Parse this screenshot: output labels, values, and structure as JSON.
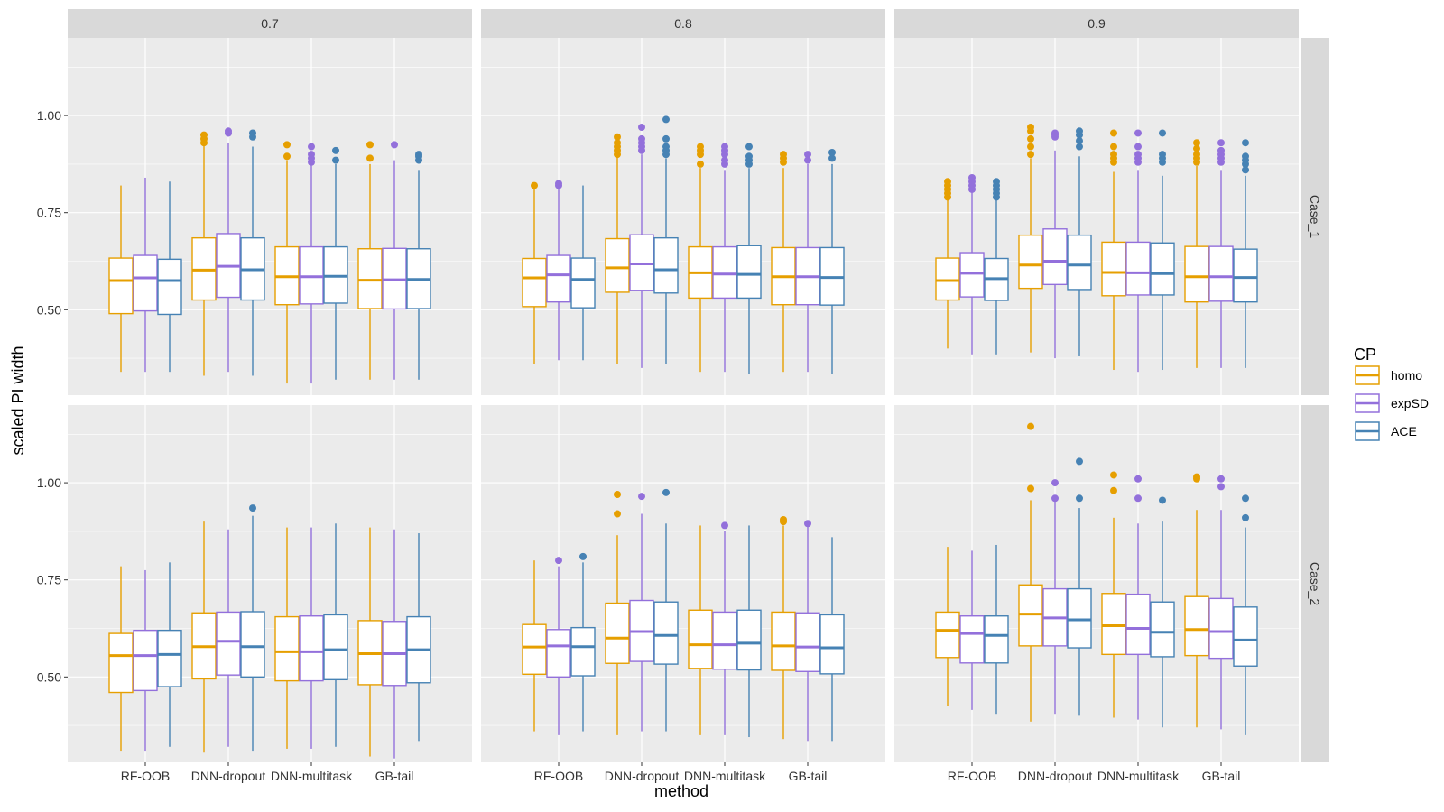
{
  "chart_data": {
    "type": "boxplot",
    "xlabel": "method",
    "ylabel": "scaled PI width",
    "ylim": [
      0.28,
      1.2
    ],
    "yticks": [
      0.5,
      0.75,
      1.0
    ],
    "ytick_labels": [
      "0.50",
      "0.75",
      "1.00"
    ],
    "categories": [
      "RF-OOB",
      "DNN-dropout",
      "DNN-multitask",
      "GB-tail"
    ],
    "facet_cols": [
      "0.7",
      "0.8",
      "0.9"
    ],
    "facet_rows": [
      "Case_1",
      "Case_2"
    ],
    "legend": {
      "title": "CP",
      "placement": "right",
      "entries": [
        {
          "label": "homo",
          "color": "#E69F00"
        },
        {
          "label": "expSD",
          "color": "#9370DB"
        },
        {
          "label": "ACE",
          "color": "#4682B4"
        }
      ]
    },
    "series_colors": [
      "#E69F00",
      "#9370DB",
      "#4682B4"
    ],
    "panels": [
      {
        "row": "Case_1",
        "col": "0.7",
        "boxes": [
          [
            {
              "whislo": 0.34,
              "q1": 0.49,
              "med": 0.575,
              "q3": 0.633,
              "whishi": 0.82,
              "out": []
            },
            {
              "whislo": 0.34,
              "q1": 0.497,
              "med": 0.582,
              "q3": 0.64,
              "whishi": 0.84,
              "out": []
            },
            {
              "whislo": 0.34,
              "q1": 0.488,
              "med": 0.575,
              "q3": 0.63,
              "whishi": 0.83,
              "out": []
            }
          ],
          [
            {
              "whislo": 0.33,
              "q1": 0.525,
              "med": 0.602,
              "q3": 0.685,
              "whishi": 0.925,
              "out": [
                0.93,
                0.94,
                0.95
              ]
            },
            {
              "whislo": 0.34,
              "q1": 0.532,
              "med": 0.612,
              "q3": 0.696,
              "whishi": 0.93,
              "out": [
                0.955,
                0.96
              ]
            },
            {
              "whislo": 0.33,
              "q1": 0.525,
              "med": 0.603,
              "q3": 0.685,
              "whishi": 0.92,
              "out": [
                0.945,
                0.955
              ]
            }
          ],
          [
            {
              "whislo": 0.31,
              "q1": 0.513,
              "med": 0.585,
              "q3": 0.662,
              "whishi": 0.885,
              "out": [
                0.895,
                0.925
              ]
            },
            {
              "whislo": 0.31,
              "q1": 0.515,
              "med": 0.585,
              "q3": 0.662,
              "whishi": 0.875,
              "out": [
                0.88,
                0.89,
                0.9,
                0.92
              ]
            },
            {
              "whislo": 0.32,
              "q1": 0.517,
              "med": 0.586,
              "q3": 0.662,
              "whishi": 0.875,
              "out": [
                0.885,
                0.91
              ]
            }
          ],
          [
            {
              "whislo": 0.32,
              "q1": 0.503,
              "med": 0.576,
              "q3": 0.657,
              "whishi": 0.875,
              "out": [
                0.89,
                0.925
              ]
            },
            {
              "whislo": 0.32,
              "q1": 0.502,
              "med": 0.577,
              "q3": 0.658,
              "whishi": 0.885,
              "out": [
                0.925
              ]
            },
            {
              "whislo": 0.32,
              "q1": 0.503,
              "med": 0.578,
              "q3": 0.657,
              "whishi": 0.86,
              "out": [
                0.885,
                0.895,
                0.9
              ]
            }
          ]
        ]
      },
      {
        "row": "Case_1",
        "col": "0.8",
        "boxes": [
          [
            {
              "whislo": 0.36,
              "q1": 0.508,
              "med": 0.582,
              "q3": 0.632,
              "whishi": 0.81,
              "out": [
                0.82
              ]
            },
            {
              "whislo": 0.37,
              "q1": 0.52,
              "med": 0.59,
              "q3": 0.64,
              "whishi": 0.81,
              "out": [
                0.82,
                0.825
              ]
            },
            {
              "whislo": 0.37,
              "q1": 0.505,
              "med": 0.578,
              "q3": 0.633,
              "whishi": 0.82,
              "out": []
            }
          ],
          [
            {
              "whislo": 0.36,
              "q1": 0.545,
              "med": 0.608,
              "q3": 0.683,
              "whishi": 0.895,
              "out": [
                0.9,
                0.91,
                0.92,
                0.93,
                0.945
              ]
            },
            {
              "whislo": 0.35,
              "q1": 0.55,
              "med": 0.618,
              "q3": 0.693,
              "whishi": 0.9,
              "out": [
                0.91,
                0.92,
                0.93,
                0.94,
                0.97
              ]
            },
            {
              "whislo": 0.36,
              "q1": 0.543,
              "med": 0.603,
              "q3": 0.685,
              "whishi": 0.89,
              "out": [
                0.9,
                0.91,
                0.92,
                0.94,
                0.99
              ]
            }
          ],
          [
            {
              "whislo": 0.34,
              "q1": 0.53,
              "med": 0.595,
              "q3": 0.662,
              "whishi": 0.865,
              "out": [
                0.875,
                0.9,
                0.91,
                0.92
              ]
            },
            {
              "whislo": 0.34,
              "q1": 0.53,
              "med": 0.592,
              "q3": 0.662,
              "whishi": 0.86,
              "out": [
                0.875,
                0.885,
                0.9,
                0.91,
                0.92
              ]
            },
            {
              "whislo": 0.335,
              "q1": 0.53,
              "med": 0.591,
              "q3": 0.665,
              "whishi": 0.865,
              "out": [
                0.875,
                0.885,
                0.895,
                0.92
              ]
            }
          ],
          [
            {
              "whislo": 0.34,
              "q1": 0.513,
              "med": 0.585,
              "q3": 0.66,
              "whishi": 0.865,
              "out": [
                0.88,
                0.89,
                0.9
              ]
            },
            {
              "whislo": 0.34,
              "q1": 0.513,
              "med": 0.585,
              "q3": 0.66,
              "whishi": 0.875,
              "out": [
                0.885,
                0.9
              ]
            },
            {
              "whislo": 0.335,
              "q1": 0.512,
              "med": 0.583,
              "q3": 0.66,
              "whishi": 0.875,
              "out": [
                0.89,
                0.905
              ]
            }
          ]
        ]
      },
      {
        "row": "Case_1",
        "col": "0.9",
        "boxes": [
          [
            {
              "whislo": 0.4,
              "q1": 0.525,
              "med": 0.575,
              "q3": 0.633,
              "whishi": 0.785,
              "out": [
                0.79,
                0.8,
                0.81,
                0.82,
                0.83
              ]
            },
            {
              "whislo": 0.385,
              "q1": 0.533,
              "med": 0.594,
              "q3": 0.647,
              "whishi": 0.805,
              "out": [
                0.81,
                0.82,
                0.83,
                0.84
              ]
            },
            {
              "whislo": 0.385,
              "q1": 0.524,
              "med": 0.58,
              "q3": 0.632,
              "whishi": 0.785,
              "out": [
                0.79,
                0.8,
                0.81,
                0.82,
                0.83
              ]
            }
          ],
          [
            {
              "whislo": 0.39,
              "q1": 0.555,
              "med": 0.615,
              "q3": 0.692,
              "whishi": 0.89,
              "out": [
                0.9,
                0.92,
                0.94,
                0.96,
                0.97
              ]
            },
            {
              "whislo": 0.375,
              "q1": 0.565,
              "med": 0.625,
              "q3": 0.708,
              "whishi": 0.91,
              "out": [
                0.945,
                0.95,
                0.955
              ]
            },
            {
              "whislo": 0.38,
              "q1": 0.552,
              "med": 0.615,
              "q3": 0.692,
              "whishi": 0.895,
              "out": [
                0.92,
                0.935,
                0.95,
                0.96
              ]
            }
          ],
          [
            {
              "whislo": 0.345,
              "q1": 0.536,
              "med": 0.596,
              "q3": 0.674,
              "whishi": 0.855,
              "out": [
                0.88,
                0.89,
                0.9,
                0.92,
                0.955
              ]
            },
            {
              "whislo": 0.34,
              "q1": 0.538,
              "med": 0.595,
              "q3": 0.674,
              "whishi": 0.86,
              "out": [
                0.88,
                0.89,
                0.9,
                0.92,
                0.955
              ]
            },
            {
              "whislo": 0.345,
              "q1": 0.538,
              "med": 0.593,
              "q3": 0.672,
              "whishi": 0.845,
              "out": [
                0.88,
                0.89,
                0.9,
                0.955
              ]
            }
          ],
          [
            {
              "whislo": 0.35,
              "q1": 0.52,
              "med": 0.585,
              "q3": 0.663,
              "whishi": 0.87,
              "out": [
                0.88,
                0.89,
                0.9,
                0.915,
                0.93
              ]
            },
            {
              "whislo": 0.35,
              "q1": 0.522,
              "med": 0.585,
              "q3": 0.663,
              "whishi": 0.86,
              "out": [
                0.88,
                0.89,
                0.9,
                0.91,
                0.93
              ]
            },
            {
              "whislo": 0.35,
              "q1": 0.52,
              "med": 0.583,
              "q3": 0.656,
              "whishi": 0.845,
              "out": [
                0.86,
                0.875,
                0.885,
                0.895,
                0.93
              ]
            }
          ]
        ]
      },
      {
        "row": "Case_2",
        "col": "0.7",
        "boxes": [
          [
            {
              "whislo": 0.31,
              "q1": 0.46,
              "med": 0.555,
              "q3": 0.612,
              "whishi": 0.785,
              "out": []
            },
            {
              "whislo": 0.31,
              "q1": 0.465,
              "med": 0.555,
              "q3": 0.62,
              "whishi": 0.775,
              "out": []
            },
            {
              "whislo": 0.32,
              "q1": 0.475,
              "med": 0.558,
              "q3": 0.62,
              "whishi": 0.795,
              "out": []
            }
          ],
          [
            {
              "whislo": 0.305,
              "q1": 0.495,
              "med": 0.578,
              "q3": 0.665,
              "whishi": 0.9,
              "out": []
            },
            {
              "whislo": 0.32,
              "q1": 0.505,
              "med": 0.592,
              "q3": 0.667,
              "whishi": 0.88,
              "out": []
            },
            {
              "whislo": 0.31,
              "q1": 0.5,
              "med": 0.578,
              "q3": 0.668,
              "whishi": 0.915,
              "out": [
                0.935
              ]
            }
          ],
          [
            {
              "whislo": 0.315,
              "q1": 0.49,
              "med": 0.565,
              "q3": 0.655,
              "whishi": 0.885,
              "out": []
            },
            {
              "whislo": 0.315,
              "q1": 0.49,
              "med": 0.565,
              "q3": 0.657,
              "whishi": 0.885,
              "out": []
            },
            {
              "whislo": 0.32,
              "q1": 0.493,
              "med": 0.57,
              "q3": 0.66,
              "whishi": 0.895,
              "out": []
            }
          ],
          [
            {
              "whislo": 0.295,
              "q1": 0.48,
              "med": 0.56,
              "q3": 0.645,
              "whishi": 0.885,
              "out": []
            },
            {
              "whislo": 0.29,
              "q1": 0.478,
              "med": 0.56,
              "q3": 0.643,
              "whishi": 0.88,
              "out": []
            },
            {
              "whislo": 0.335,
              "q1": 0.485,
              "med": 0.57,
              "q3": 0.655,
              "whishi": 0.87,
              "out": []
            }
          ]
        ]
      },
      {
        "row": "Case_2",
        "col": "0.8",
        "boxes": [
          [
            {
              "whislo": 0.36,
              "q1": 0.507,
              "med": 0.577,
              "q3": 0.635,
              "whishi": 0.8,
              "out": []
            },
            {
              "whislo": 0.35,
              "q1": 0.5,
              "med": 0.58,
              "q3": 0.622,
              "whishi": 0.785,
              "out": [
                0.8
              ]
            },
            {
              "whislo": 0.36,
              "q1": 0.503,
              "med": 0.578,
              "q3": 0.627,
              "whishi": 0.795,
              "out": [
                0.81
              ]
            }
          ],
          [
            {
              "whislo": 0.35,
              "q1": 0.535,
              "med": 0.6,
              "q3": 0.69,
              "whishi": 0.865,
              "out": [
                0.92,
                0.97
              ]
            },
            {
              "whislo": 0.36,
              "q1": 0.54,
              "med": 0.617,
              "q3": 0.697,
              "whishi": 0.92,
              "out": [
                0.965
              ]
            },
            {
              "whislo": 0.36,
              "q1": 0.533,
              "med": 0.607,
              "q3": 0.693,
              "whishi": 0.895,
              "out": [
                0.975
              ]
            }
          ],
          [
            {
              "whislo": 0.35,
              "q1": 0.522,
              "med": 0.583,
              "q3": 0.672,
              "whishi": 0.89,
              "out": []
            },
            {
              "whislo": 0.35,
              "q1": 0.52,
              "med": 0.583,
              "q3": 0.667,
              "whishi": 0.875,
              "out": [
                0.89
              ]
            },
            {
              "whislo": 0.345,
              "q1": 0.518,
              "med": 0.587,
              "q3": 0.672,
              "whishi": 0.89,
              "out": []
            }
          ],
          [
            {
              "whislo": 0.34,
              "q1": 0.517,
              "med": 0.58,
              "q3": 0.667,
              "whishi": 0.89,
              "out": [
                0.9,
                0.905
              ]
            },
            {
              "whislo": 0.335,
              "q1": 0.514,
              "med": 0.577,
              "q3": 0.665,
              "whishi": 0.89,
              "out": [
                0.895
              ]
            },
            {
              "whislo": 0.335,
              "q1": 0.508,
              "med": 0.575,
              "q3": 0.66,
              "whishi": 0.86,
              "out": []
            }
          ]
        ]
      },
      {
        "row": "Case_2",
        "col": "0.9",
        "boxes": [
          [
            {
              "whislo": 0.425,
              "q1": 0.55,
              "med": 0.62,
              "q3": 0.667,
              "whishi": 0.835,
              "out": []
            },
            {
              "whislo": 0.415,
              "q1": 0.536,
              "med": 0.612,
              "q3": 0.657,
              "whishi": 0.825,
              "out": []
            },
            {
              "whislo": 0.405,
              "q1": 0.536,
              "med": 0.607,
              "q3": 0.657,
              "whishi": 0.84,
              "out": []
            }
          ],
          [
            {
              "whislo": 0.385,
              "q1": 0.58,
              "med": 0.662,
              "q3": 0.737,
              "whishi": 0.955,
              "out": [
                0.985,
                1.145
              ]
            },
            {
              "whislo": 0.405,
              "q1": 0.58,
              "med": 0.652,
              "q3": 0.727,
              "whishi": 0.955,
              "out": [
                0.96,
                1.0
              ]
            },
            {
              "whislo": 0.4,
              "q1": 0.575,
              "med": 0.647,
              "q3": 0.727,
              "whishi": 0.935,
              "out": [
                0.96,
                1.055
              ]
            }
          ],
          [
            {
              "whislo": 0.395,
              "q1": 0.558,
              "med": 0.632,
              "q3": 0.715,
              "whishi": 0.91,
              "out": [
                0.98,
                1.02
              ]
            },
            {
              "whislo": 0.39,
              "q1": 0.558,
              "med": 0.625,
              "q3": 0.713,
              "whishi": 0.895,
              "out": [
                0.96,
                1.01
              ]
            },
            {
              "whislo": 0.37,
              "q1": 0.552,
              "med": 0.615,
              "q3": 0.693,
              "whishi": 0.9,
              "out": [
                0.955
              ]
            }
          ],
          [
            {
              "whislo": 0.37,
              "q1": 0.555,
              "med": 0.622,
              "q3": 0.707,
              "whishi": 0.93,
              "out": [
                1.01,
                1.015
              ]
            },
            {
              "whislo": 0.365,
              "q1": 0.548,
              "med": 0.617,
              "q3": 0.702,
              "whishi": 0.93,
              "out": [
                0.99,
                1.01
              ]
            },
            {
              "whislo": 0.35,
              "q1": 0.528,
              "med": 0.595,
              "q3": 0.68,
              "whishi": 0.885,
              "out": [
                0.91,
                0.96
              ]
            }
          ]
        ]
      }
    ]
  }
}
